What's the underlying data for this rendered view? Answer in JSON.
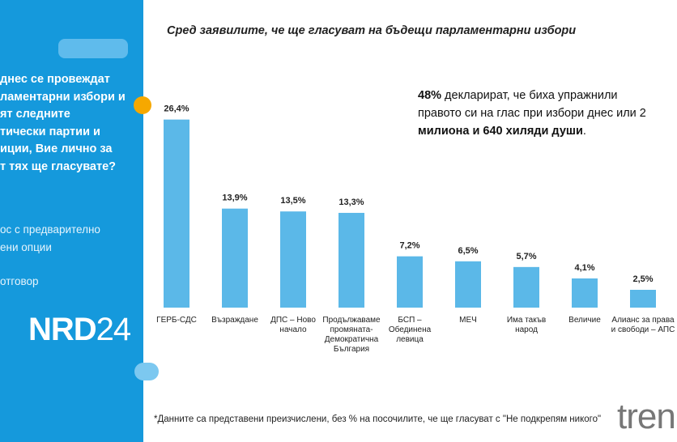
{
  "panel": {
    "question": "днес се провеждат\nламентарни избори и\nят следните\nтически партии и\nиции, Вие лично за\nт тях ще гласувате?",
    "method": "ос с предварително\nени опции",
    "answer": "отговор",
    "logo_main": "NRD",
    "logo_num": "24"
  },
  "brand": "tren",
  "chart_data": {
    "type": "bar",
    "title": "Сред заявилите, че ще гласуват на бъдещи парламентарни избори",
    "annotation_bold": "48%",
    "annotation_line1": " декларират, че биха упражнили",
    "annotation_line2": "правото си на глас при избори днес или 2",
    "annotation_line3": "милиона и 640 хиляди души",
    "annotation_end": ".",
    "footnote": "*Данните са представени преизчислени, без % на посочилите, че ще гласуват с \"Не подкрепям никого\"",
    "categories": [
      [
        "ГЕРБ-СДС"
      ],
      [
        "Възраждане"
      ],
      [
        "ДПС – Ново",
        "начало"
      ],
      [
        "Продължаваме",
        "промяната-",
        "Демократична",
        "България"
      ],
      [
        "БСП –",
        "Обединена",
        "левица"
      ],
      [
        "МЕЧ"
      ],
      [
        "Има такъв",
        "народ"
      ],
      [
        "Величие"
      ],
      [
        "Алианс за права",
        "и свободи – АПС"
      ]
    ],
    "values": [
      26.4,
      13.9,
      13.5,
      13.3,
      7.2,
      6.5,
      5.7,
      4.1,
      2.5
    ],
    "value_labels": [
      "26,4%",
      "13,9%",
      "13,5%",
      "13,3%",
      "7,2%",
      "6,5%",
      "5,7%",
      "4,1%",
      "2,5%"
    ],
    "bar_color": "#5bb8e8",
    "ylim": [
      0,
      30
    ]
  }
}
